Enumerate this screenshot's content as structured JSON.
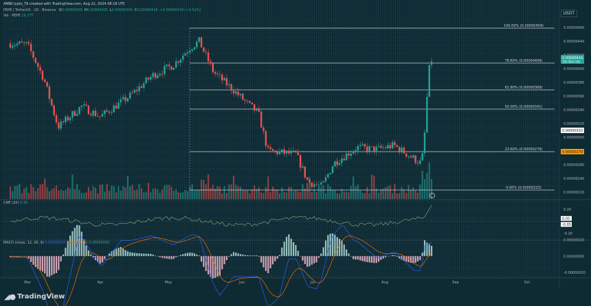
{
  "publisher": "AMBCrypto_TA created with TradingView.com, Aug 22, 2024 08:18 UTC",
  "header": {
    "symbol": "PEPE / TetherUS · 1D · Binance",
    "ohlc": [
      {
        "k": "O",
        "v": "0.00000418"
      },
      {
        "k": "H",
        "v": "0.00000435"
      },
      {
        "k": "L",
        "v": "0.00000393"
      },
      {
        "k": "C",
        "v": "0.00000416"
      },
      {
        "k": "",
        "v": "+0.00000018 (+4.52%)"
      }
    ],
    "vol_label": "Vol · PEPE",
    "vol_value": "19.27T"
  },
  "currency": "USDT",
  "brand": "TradingView",
  "colors": {
    "bg": "#0e2a33",
    "up": "#26a69a",
    "down": "#ef5350",
    "fib": "#c8d0d6",
    "grid": "#1c3b46",
    "macd": "#2962ff",
    "signal": "#ff6d00",
    "cmf": "#8a9a7a",
    "fib_highlight": "#ff9800",
    "price_label": "#26a69a"
  },
  "chart_data": [
    {
      "type": "candlestick",
      "title": "PEPE / TetherUS · 1D · Binance",
      "x_ticks": [
        "Mar",
        "Apr",
        "May",
        "Jun",
        "Jul",
        "Aug",
        "Sep",
        "Oct"
      ],
      "y_ticks": [
        "0.00000460",
        "0.00000440",
        "0.00000420",
        "0.00000400",
        "0.00000380",
        "0.00000360",
        "0.00000340",
        "0.00000320",
        "0.00000300",
        "0.00000280",
        "0.00000260",
        "0.00000240",
        "0.00000220"
      ],
      "ylim": [
        2.1e-06,
        4.7e-06
      ],
      "keypoints": [
        [
          "Mar 1",
          4.35e-06
        ],
        [
          "Mar 8",
          3.85e-06
        ],
        [
          "Mar 14",
          3.15e-06
        ],
        [
          "Mar 24",
          3.45e-06
        ],
        [
          "Apr 1",
          3.3e-06
        ],
        [
          "Apr 14",
          3.6e-06
        ],
        [
          "Apr 24",
          3.9e-06
        ],
        [
          "May 3",
          4.05e-06
        ],
        [
          "May 10",
          4.3e-06
        ],
        [
          "May 14",
          4.4e-06
        ],
        [
          "May 20",
          3.95e-06
        ],
        [
          "May 28",
          3.7e-06
        ],
        [
          "Jun 3",
          3.5e-06
        ],
        [
          "Jun 8",
          3.35e-06
        ],
        [
          "Jun 12",
          2.8e-06
        ],
        [
          "Jun 24",
          2.75e-06
        ],
        [
          "Jun 29",
          2.35e-06
        ],
        [
          "Jul 5",
          2.28e-06
        ],
        [
          "Jul 10",
          2.62e-06
        ],
        [
          "Jul 20",
          2.85e-06
        ],
        [
          "Jul 28",
          2.82e-06
        ],
        [
          "Aug 5",
          2.88e-06
        ],
        [
          "Aug 14",
          2.68e-06
        ],
        [
          "Aug 17",
          2.62e-06
        ],
        [
          "Aug 18",
          2.85e-06
        ],
        [
          "Aug 19",
          3.3e-06
        ],
        [
          "Aug 20",
          3.9e-06
        ],
        [
          "Aug 21",
          4.1e-06
        ],
        [
          "Aug 22",
          4.16e-06
        ]
      ],
      "fib_levels": [
        {
          "label": "100.00% (0.00000459)",
          "value": 4.59e-06
        },
        {
          "label": "78.60% (0.00000408)",
          "value": 4.08e-06
        },
        {
          "label": "61.80% (0.00000369)",
          "value": 3.69e-06
        },
        {
          "label": "50.00% (0.00000341)",
          "value": 3.41e-06
        },
        {
          "label": "23.60% (0.00000279)",
          "value": 2.79e-06
        },
        {
          "label": "0.00% (0.00000223)",
          "value": 2.23e-06
        }
      ],
      "price_labels": [
        {
          "text": "0.00000416",
          "sub": "15h 41m 19s",
          "value": 4.16e-06,
          "role": "last"
        },
        {
          "text": "0.00000310",
          "value": 3.1e-06,
          "role": "level"
        },
        {
          "text": "0.00000279",
          "value": 2.79e-06,
          "role": "fib"
        }
      ]
    },
    {
      "type": "line",
      "title": "CMF (20) 0.30",
      "name": "CMF (20)",
      "value": "0.30",
      "y_ticks": [
        "0.20",
        "0.05",
        "-0.05",
        "-0.20"
      ],
      "ylim": [
        -0.3,
        0.35
      ]
    },
    {
      "type": "bar",
      "title": "MACD (close, 12, 26, 9)",
      "name": "MACD (close, 12, 26, 9)",
      "values": [
        "0.00000035",
        "0.00000030",
        "0.00000005"
      ],
      "y_ticks": [
        "0.00000020",
        "0.00000000",
        "-0.00000020"
      ]
    }
  ]
}
